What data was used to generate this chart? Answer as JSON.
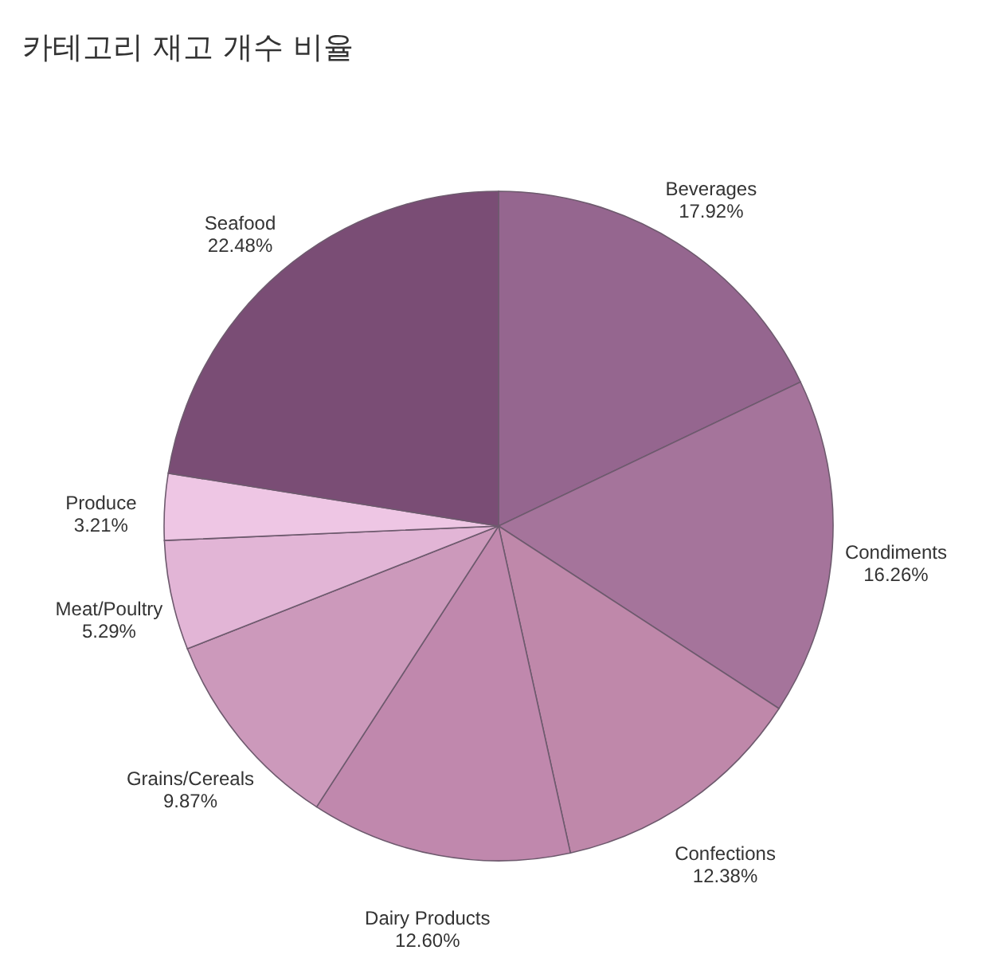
{
  "chart_data": {
    "type": "pie",
    "title": "카테고리 재고 개수 비율",
    "categories": [
      "Beverages",
      "Condiments",
      "Confections",
      "Dairy Products",
      "Grains/Cereals",
      "Meat/Poultry",
      "Produce",
      "Seafood"
    ],
    "values": [
      17.92,
      16.26,
      12.38,
      12.6,
      9.87,
      5.29,
      3.21,
      22.48
    ],
    "value_labels": [
      "17.92%",
      "16.26%",
      "12.38%",
      "12.60%",
      "9.87%",
      "5.29%",
      "3.21%",
      "22.48%"
    ],
    "colors": [
      "#95668f",
      "#a5749b",
      "#bf88aa",
      "#c088ad",
      "#cc99bb",
      "#e2b5d6",
      "#eec6e4",
      "#7a4d75"
    ]
  }
}
